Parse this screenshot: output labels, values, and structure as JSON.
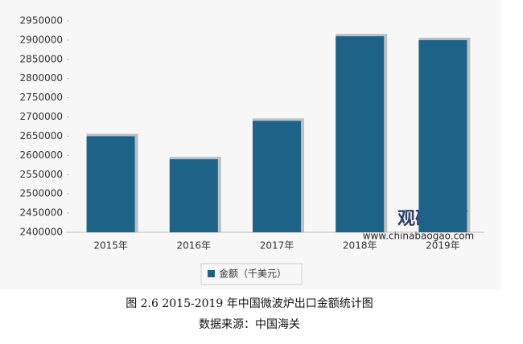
{
  "chart_data": {
    "type": "bar",
    "categories": [
      "2015年",
      "2016年",
      "2017年",
      "2018年",
      "2019年"
    ],
    "series": [
      {
        "name": "金额（千美元）",
        "color": "#1d6388",
        "values": [
          2650000,
          2590000,
          2690000,
          2910000,
          2900000
        ]
      }
    ],
    "ylim": [
      2400000,
      2950000
    ],
    "yticks": [
      2400000,
      2450000,
      2500000,
      2550000,
      2600000,
      2650000,
      2700000,
      2750000,
      2800000,
      2850000,
      2900000,
      2950000
    ],
    "legend": "bottom"
  },
  "watermark": {
    "brand": "观研天下",
    "url": "www.chinabaogao.com"
  },
  "caption": {
    "title": "图 2.6 2015-2019 年中国微波炉出口金额统计图",
    "source": "数据来源：中国海关"
  }
}
